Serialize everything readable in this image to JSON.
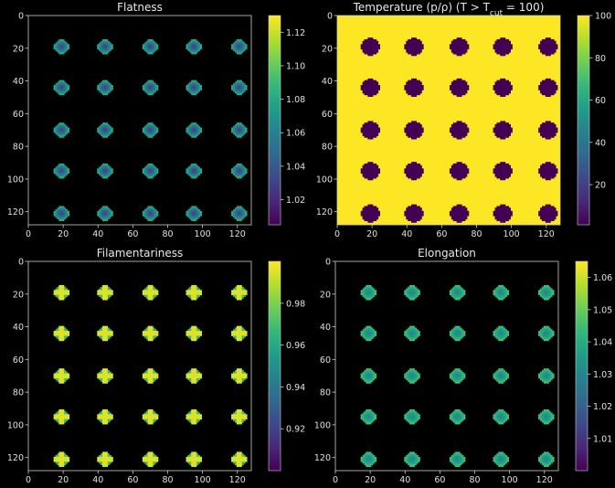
{
  "chart_data": [
    {
      "type": "heatmap",
      "id": "flatness",
      "title": "Flatness",
      "xlim": [
        0,
        128
      ],
      "ylim": [
        128,
        0
      ],
      "xticks": [
        0,
        20,
        40,
        60,
        80,
        100,
        120
      ],
      "yticks": [
        0,
        20,
        40,
        60,
        80,
        100,
        120
      ],
      "background_value": "none",
      "blob_centers": [
        19,
        44,
        70,
        95,
        121
      ],
      "blob_radius": 4,
      "pattern": "ring",
      "center_value": 1.03,
      "edge_value": 1.08,
      "colorbar": {
        "min": 1.005,
        "max": 1.13,
        "ticks": [
          "1.02",
          "1.04",
          "1.06",
          "1.08",
          "1.10",
          "1.12"
        ],
        "tick_values": [
          1.02,
          1.04,
          1.06,
          1.08,
          1.1,
          1.12
        ]
      }
    },
    {
      "type": "heatmap",
      "id": "temperature",
      "title": "Temperature (p/ρ) (T > T",
      "title_sub": "cut",
      "title_tail": " = 100)",
      "xlim": [
        0,
        128
      ],
      "ylim": [
        128,
        0
      ],
      "xticks": [
        0,
        20,
        40,
        60,
        80,
        100,
        120
      ],
      "yticks": [
        0,
        20,
        40,
        60,
        80,
        100,
        120
      ],
      "background_value": 100,
      "blob_centers": [
        19,
        44,
        70,
        95,
        121
      ],
      "blob_radius": 5,
      "pattern": "solid",
      "center_value": 1,
      "edge_value": 1,
      "colorbar": {
        "min": 1,
        "max": 100,
        "ticks": [
          "20",
          "40",
          "60",
          "80",
          "100"
        ],
        "tick_values": [
          20,
          40,
          60,
          80,
          100
        ]
      }
    },
    {
      "type": "heatmap",
      "id": "filamentariness",
      "title": "Filamentariness",
      "xlim": [
        0,
        128
      ],
      "ylim": [
        128,
        0
      ],
      "xticks": [
        0,
        20,
        40,
        60,
        80,
        100,
        120
      ],
      "yticks": [
        0,
        20,
        40,
        60,
        80,
        100,
        120
      ],
      "background_value": "none",
      "blob_centers": [
        19,
        44,
        70,
        95,
        121
      ],
      "blob_radius": 4,
      "pattern": "cross",
      "center_value": 0.995,
      "edge_value": 0.97,
      "colorbar": {
        "min": 0.9,
        "max": 1.0,
        "ticks": [
          "0.92",
          "0.94",
          "0.96",
          "0.98"
        ],
        "tick_values": [
          0.92,
          0.94,
          0.96,
          0.98
        ]
      }
    },
    {
      "type": "heatmap",
      "id": "elongation",
      "title": "Elongation",
      "xlim": [
        0,
        128
      ],
      "ylim": [
        128,
        0
      ],
      "xticks": [
        0,
        20,
        40,
        60,
        80,
        100,
        120
      ],
      "yticks": [
        0,
        20,
        40,
        60,
        80,
        100,
        120
      ],
      "background_value": "none",
      "blob_centers": [
        19,
        44,
        70,
        95,
        121
      ],
      "blob_radius": 4,
      "pattern": "ring",
      "center_value": 1.03,
      "edge_value": 1.045,
      "colorbar": {
        "min": 1.0,
        "max": 1.065,
        "ticks": [
          "1.01",
          "1.02",
          "1.03",
          "1.04",
          "1.05",
          "1.06"
        ],
        "tick_values": [
          1.01,
          1.02,
          1.03,
          1.04,
          1.05,
          1.06
        ]
      }
    }
  ],
  "colors": {
    "background": "#000000",
    "axis": "#cccccc",
    "text": "#e0e0e0",
    "viridis": [
      "#440154",
      "#482878",
      "#3e4989",
      "#31688e",
      "#26828e",
      "#1f9e89",
      "#35b779",
      "#6ece58",
      "#b5de2b",
      "#fde725"
    ]
  }
}
